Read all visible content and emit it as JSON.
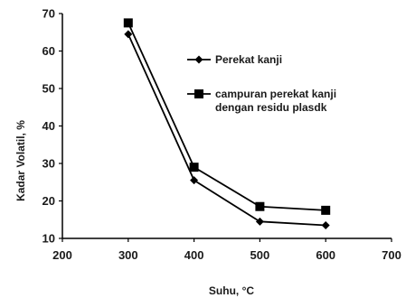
{
  "chart_data": {
    "type": "line",
    "title": "",
    "xlabel": "Suhu, °C",
    "ylabel": "Kadar Volatil, %",
    "xlim": [
      200,
      700
    ],
    "ylim": [
      10,
      70
    ],
    "xticks": [
      200,
      300,
      400,
      500,
      600,
      700
    ],
    "yticks": [
      10,
      20,
      30,
      40,
      50,
      60,
      70
    ],
    "grid": false,
    "legend_position": "top-right",
    "x": [
      300,
      400,
      500,
      600
    ],
    "series": [
      {
        "name": "Perekat kanji",
        "values": [
          64.5,
          25.5,
          14.5,
          13.5
        ],
        "marker": "diamond",
        "color": "#000000"
      },
      {
        "name_lines": [
          "campuran perekat kanji",
          "dengan residu plasdk"
        ],
        "values": [
          67.5,
          29,
          18.5,
          17.5
        ],
        "marker": "square",
        "color": "#000000"
      }
    ]
  }
}
